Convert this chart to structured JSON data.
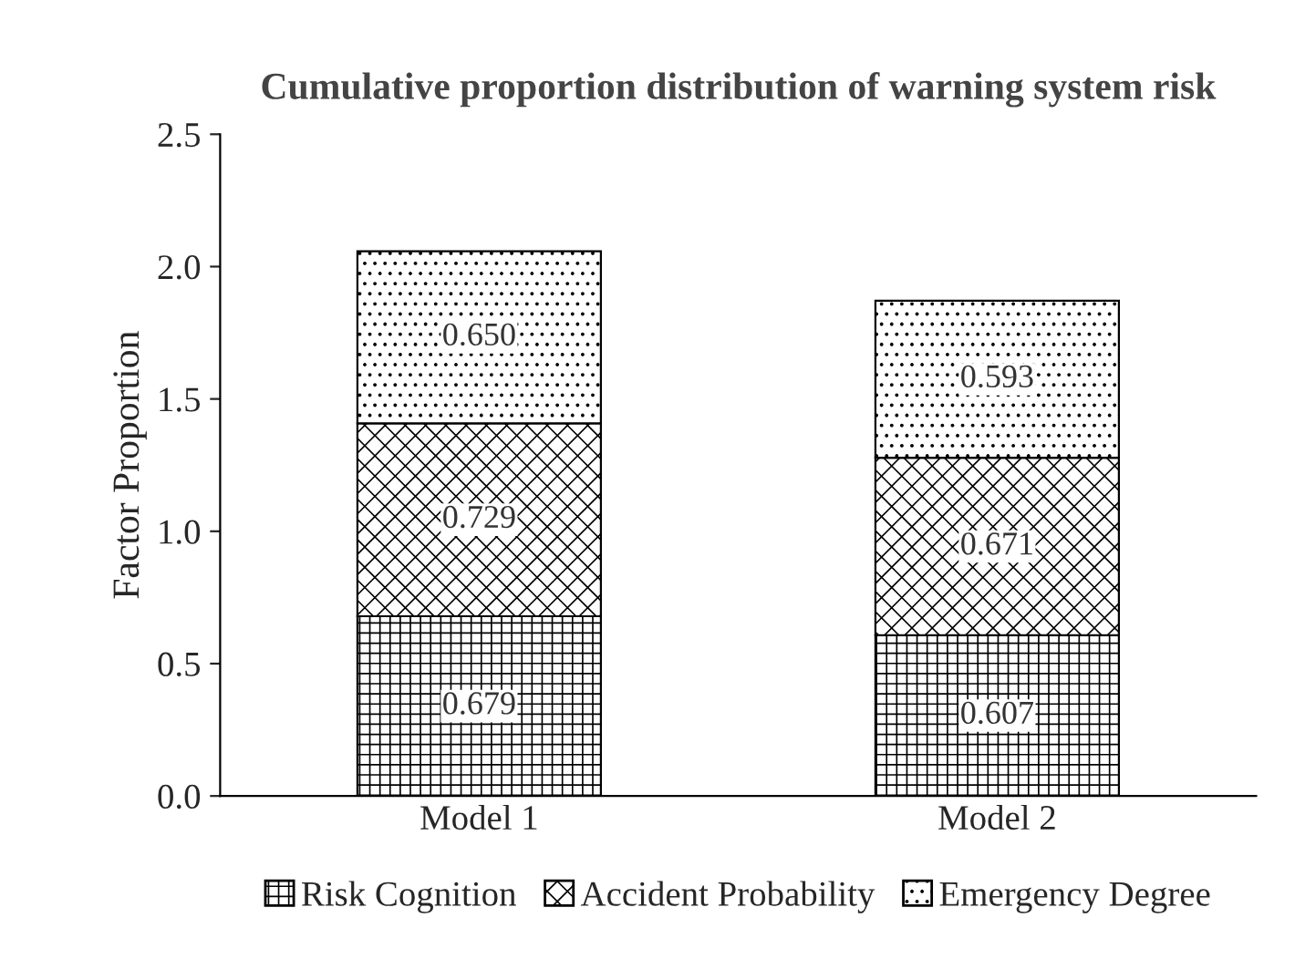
{
  "chart_data": {
    "type": "bar",
    "stacked": true,
    "title": "Cumulative proportion distribution of warning system risk",
    "ylabel": "Factor Proportion",
    "categories": [
      "Model 1",
      "Model 2"
    ],
    "series": [
      {
        "name": "Risk Cognition",
        "color": "#000000",
        "values": [
          0.679,
          0.607
        ],
        "value_labels": [
          "0.679",
          "0.607"
        ]
      },
      {
        "name": "Accident Probability",
        "color": "#000000",
        "values": [
          0.729,
          0.671
        ],
        "value_labels": [
          "0.729",
          "0.671"
        ]
      },
      {
        "name": "Emergency Degree",
        "color": "#000000",
        "values": [
          0.65,
          0.593
        ],
        "value_labels": [
          "0.650",
          "0.593"
        ]
      }
    ],
    "ylim": [
      0,
      2.5
    ],
    "yticks": [
      {
        "value": 0,
        "label": "0.0"
      },
      {
        "value": 0.5,
        "label": "0.5"
      },
      {
        "value": 1,
        "label": "1.0"
      },
      {
        "value": 1.5,
        "label": "1.5"
      },
      {
        "value": 2,
        "label": "2.0"
      },
      {
        "value": 2.5,
        "label": "2.5"
      }
    ],
    "grid": false,
    "legend": "bottom"
  }
}
